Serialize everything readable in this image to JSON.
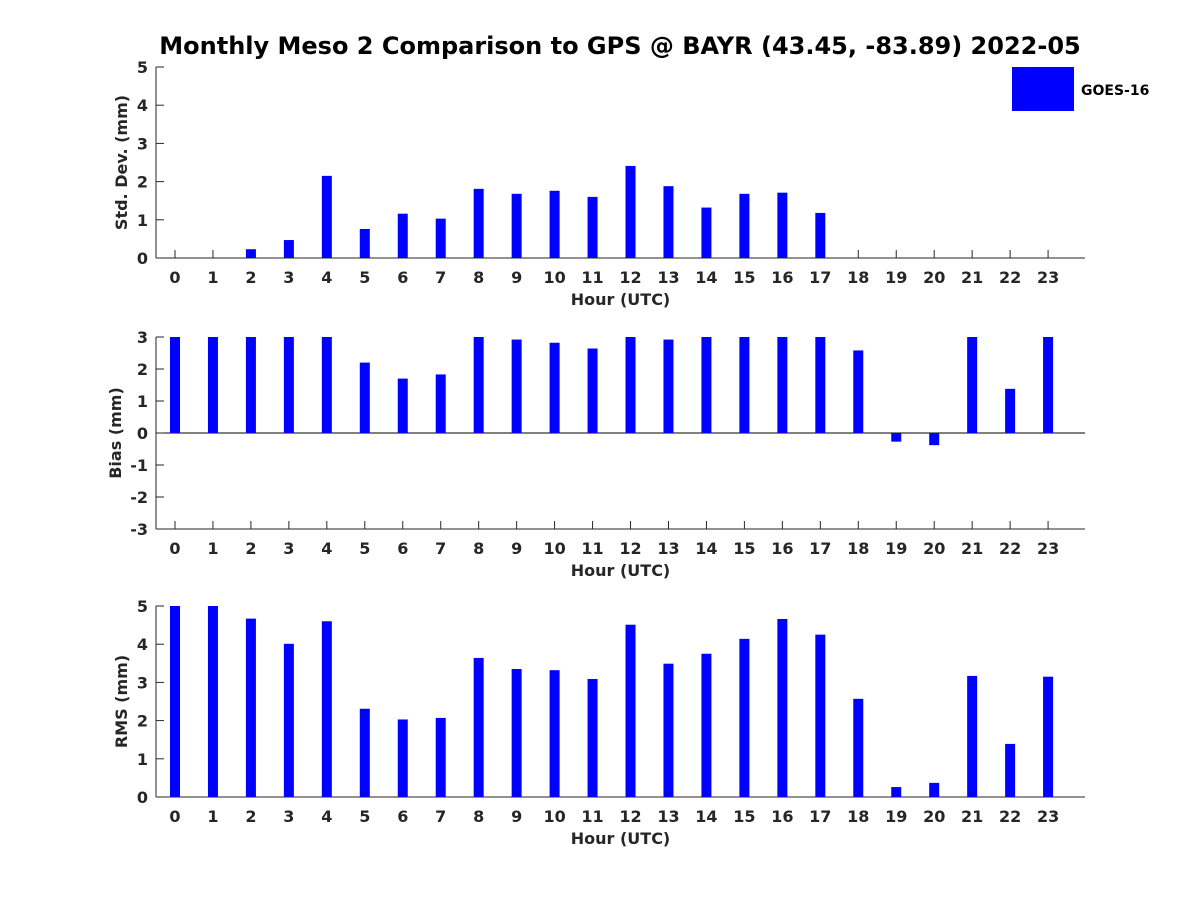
{
  "chart_data": {
    "title": "Monthly Meso 2 Comparison to GPS @ BAYR (43.45, -83.89) 2022-05",
    "legend": {
      "label": "GOES-16",
      "color": "#0000ff",
      "placement": "top-right"
    },
    "bar_color": "#0000ff",
    "hours": [
      "0",
      "1",
      "2",
      "3",
      "4",
      "5",
      "6",
      "7",
      "8",
      "9",
      "10",
      "11",
      "12",
      "13",
      "14",
      "15",
      "16",
      "17",
      "18",
      "19",
      "20",
      "21",
      "22",
      "23"
    ],
    "panels": [
      {
        "type": "bar",
        "ylabel": "Std. Dev. (mm)",
        "xlabel": "Hour (UTC)",
        "ylim": [
          0,
          5
        ],
        "yticks": [
          "0",
          "1",
          "2",
          "3",
          "4",
          "5"
        ],
        "values": [
          null,
          null,
          0.23,
          0.47,
          2.15,
          0.76,
          1.16,
          1.03,
          1.81,
          1.68,
          1.76,
          1.6,
          2.41,
          1.88,
          1.32,
          1.68,
          1.71,
          1.18,
          null,
          null,
          null,
          null,
          null,
          null
        ]
      },
      {
        "type": "bar",
        "ylabel": "Bias (mm)",
        "xlabel": "Hour (UTC)",
        "ylim": [
          -3,
          3
        ],
        "yticks": [
          "-3",
          "-2",
          "-1",
          "0",
          "1",
          "2",
          "3"
        ],
        "values": [
          3.0,
          3.0,
          3.0,
          3.0,
          3.0,
          2.2,
          1.7,
          1.83,
          3.0,
          2.92,
          2.82,
          2.64,
          3.0,
          2.92,
          3.0,
          3.0,
          3.0,
          3.0,
          2.58,
          -0.27,
          -0.38,
          3.0,
          1.38,
          3.0
        ]
      },
      {
        "type": "bar",
        "ylabel": "RMS (mm)",
        "xlabel": "Hour (UTC)",
        "ylim": [
          0,
          5
        ],
        "yticks": [
          "0",
          "1",
          "2",
          "3",
          "4",
          "5"
        ],
        "values": [
          5.0,
          5.0,
          4.67,
          4.01,
          4.6,
          2.31,
          2.03,
          2.07,
          3.64,
          3.35,
          3.32,
          3.09,
          4.51,
          3.49,
          3.75,
          4.14,
          4.66,
          4.25,
          2.57,
          0.26,
          0.37,
          3.17,
          1.39,
          3.15
        ]
      }
    ]
  }
}
